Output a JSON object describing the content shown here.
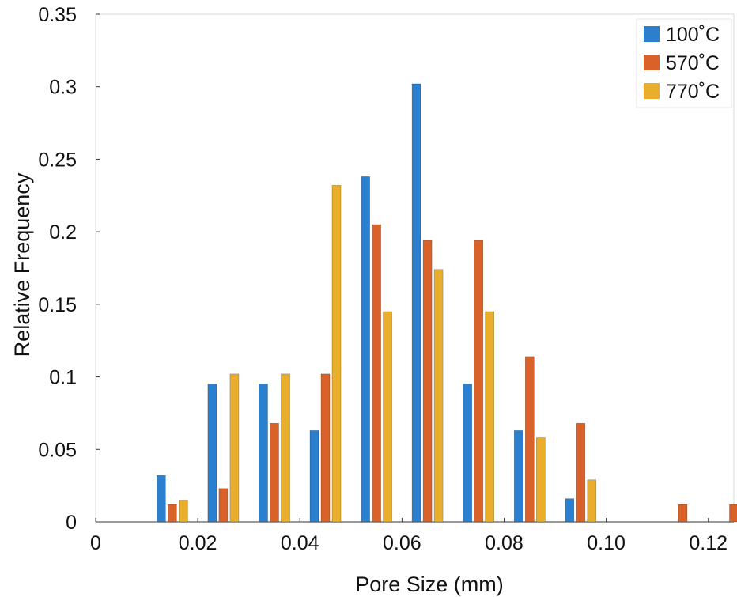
{
  "chart_data": {
    "type": "bar",
    "title": "",
    "xlabel": "Pore Size (mm)",
    "ylabel": "Relative Frequency",
    "xlim": [
      0,
      0.125
    ],
    "ylim": [
      0,
      0.35
    ],
    "xticks": [
      0,
      0.02,
      0.04,
      0.06,
      0.08,
      0.1,
      0.12
    ],
    "xtick_labels": [
      "0",
      "0.02",
      "0.04",
      "0.06",
      "0.08",
      "0.10",
      "0.12"
    ],
    "yticks": [
      0,
      0.05,
      0.1,
      0.15,
      0.2,
      0.25,
      0.3,
      0.35
    ],
    "ytick_labels": [
      "0",
      "0.05",
      "0.1",
      "0.15",
      "0.2",
      "0.25",
      "0.3",
      "0.35"
    ],
    "grid": false,
    "legend_position": "top-right",
    "bin_centers": [
      0.015,
      0.025,
      0.035,
      0.045,
      0.055,
      0.065,
      0.075,
      0.085,
      0.095,
      0.105,
      0.115,
      0.125
    ],
    "series": [
      {
        "name": "100˚C",
        "color": "#2a7fcf",
        "values": [
          0.032,
          0.095,
          0.095,
          0.063,
          0.238,
          0.302,
          0.095,
          0.063,
          0.016,
          0,
          0,
          0
        ]
      },
      {
        "name": "570˚C",
        "color": "#d9622b",
        "values": [
          0.012,
          0.023,
          0.068,
          0.102,
          0.205,
          0.194,
          0.194,
          0.114,
          0.068,
          0,
          0.012,
          0.012
        ]
      },
      {
        "name": "770˚C",
        "color": "#e8ae2c",
        "values": [
          0.015,
          0.102,
          0.102,
          0.232,
          0.145,
          0.174,
          0.145,
          0.058,
          0.029,
          0,
          0,
          0
        ]
      }
    ]
  }
}
